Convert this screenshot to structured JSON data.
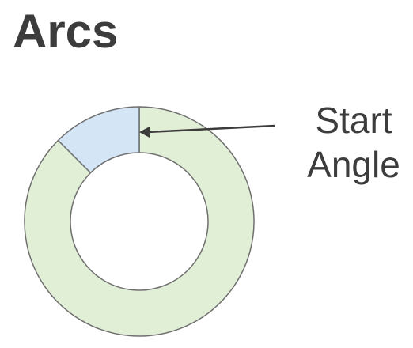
{
  "title": "Arcs",
  "annotation": {
    "line1": "Start",
    "line2": "Angle"
  },
  "arcs": [
    {
      "name": "large-arc",
      "start_deg": 0,
      "end_deg": 315,
      "fill": "#e1efd6"
    },
    {
      "name": "small-arc",
      "start_deg": 315,
      "end_deg": 360,
      "fill": "#d4e5f6"
    }
  ],
  "colors": {
    "stroke": "#6f6f6f",
    "text": "#3c3c3c",
    "arrow": "#3c3c3c"
  }
}
